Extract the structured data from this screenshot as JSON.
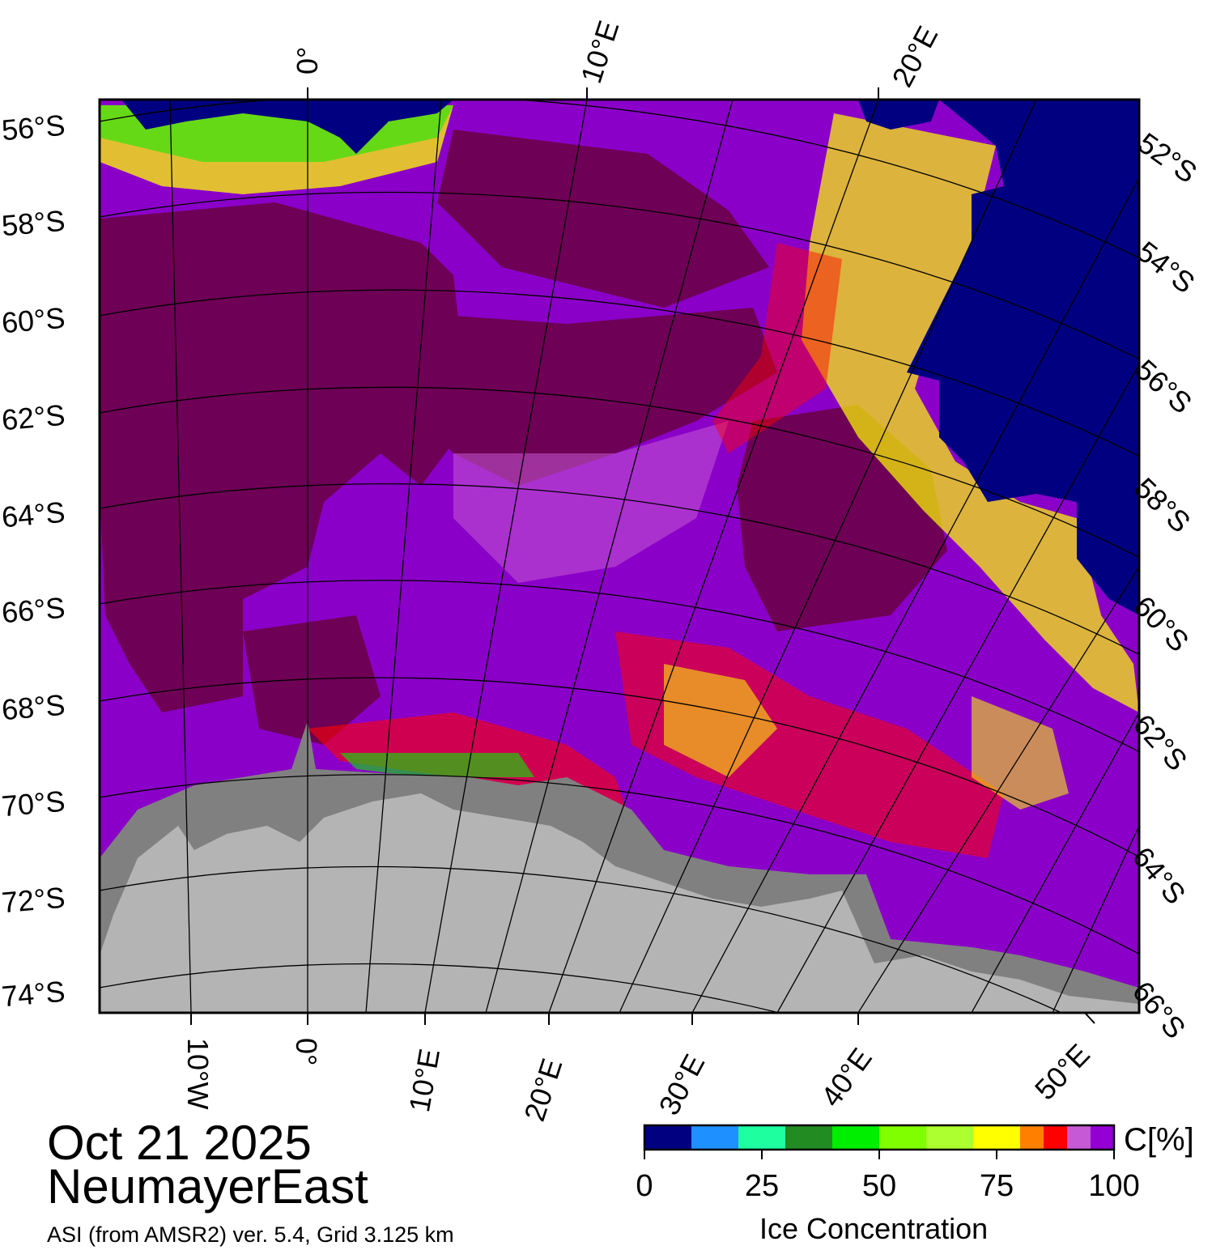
{
  "map": {
    "date": "Oct 21 2025",
    "region": "NeumayerEast",
    "source": "ASI (from AMSR2) ver. 5.4,  Grid 3.125 km",
    "top_lon_labels": [
      "0°",
      "10°E",
      "20°E"
    ],
    "left_lat_labels": [
      "56°S",
      "58°S",
      "60°S",
      "62°S",
      "64°S",
      "66°S",
      "68°S",
      "70°S",
      "72°S",
      "74°S"
    ],
    "right_lat_labels": [
      "52°S",
      "54°S",
      "56°S",
      "58°S",
      "60°S",
      "62°S",
      "64°S",
      "66°S"
    ],
    "bottom_lon_labels": [
      "10°W",
      "0°",
      "10°E",
      "20°E",
      "30°E",
      "40°E",
      "50°E"
    ],
    "colors": {
      "open_water": "#000080",
      "land_ice": "#b4b4b4",
      "ice_shelf": "#808080",
      "high_ice": "#6e0055"
    }
  },
  "legend": {
    "title": "Ice Concentration",
    "unit": "C[%]",
    "ticks": [
      "0",
      "25",
      "50",
      "75",
      "100"
    ],
    "colors": [
      "#000080",
      "#1e90ff",
      "#1effa0",
      "#228b22",
      "#00ee00",
      "#7fff00",
      "#adff2f",
      "#ffff00",
      "#ff7f00",
      "#ff0000",
      "#c65ad6",
      "#9400d3"
    ]
  }
}
